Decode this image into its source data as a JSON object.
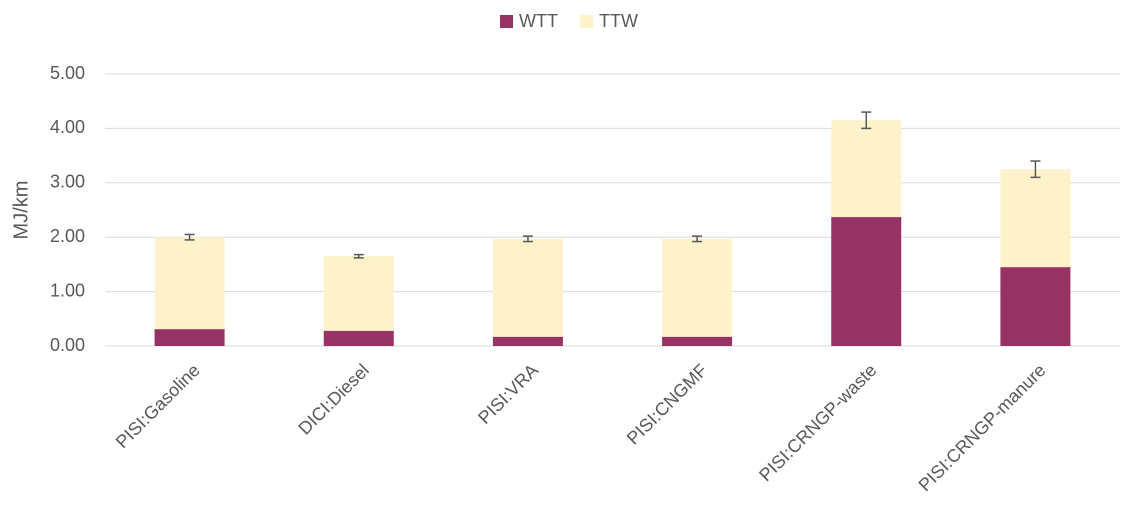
{
  "chart_data": {
    "type": "stacked_bar",
    "y_label": "MJ/km",
    "categories": [
      "PISI:Gasoline",
      "DICI:Diesel",
      "PISI:VRA",
      "PISI:CNGMF",
      "PISI:CRNGP-waste",
      "PISI:CRNGP-manure"
    ],
    "series": [
      {
        "name": "WTT",
        "color": "#963264",
        "values": [
          0.31,
          0.28,
          0.17,
          0.17,
          2.37,
          1.45
        ]
      },
      {
        "name": "TTW",
        "color": "#fef2cb",
        "values": [
          1.69,
          1.37,
          1.8,
          1.8,
          1.78,
          1.8
        ],
        "errors": [
          0.05,
          0.03,
          0.05,
          0.05,
          0.15,
          0.15
        ]
      }
    ],
    "ylim": [
      0,
      5
    ],
    "yticks": [
      {
        "value": 0,
        "label": "0.00"
      },
      {
        "value": 1,
        "label": "1.00"
      },
      {
        "value": 2,
        "label": "2.00"
      },
      {
        "value": 3,
        "label": "3.00"
      },
      {
        "value": 4,
        "label": "4.00"
      },
      {
        "value": 5,
        "label": "5.00"
      }
    ],
    "grid": true,
    "legend": "top"
  }
}
